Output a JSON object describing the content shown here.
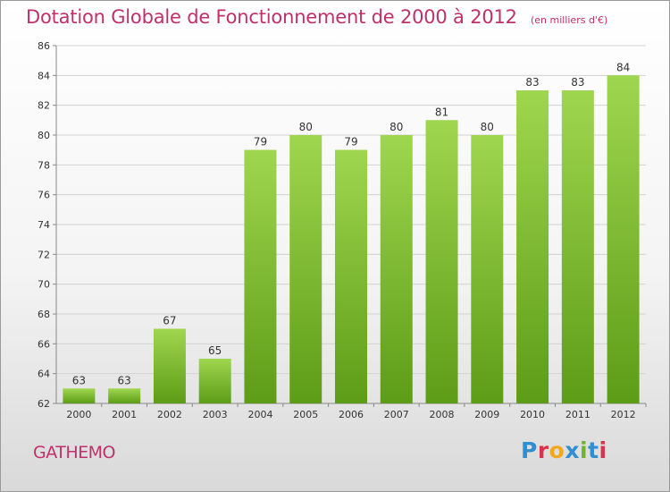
{
  "header": {
    "title": "Dotation Globale de Fonctionnement de 2000 à 2012",
    "subtitle": "(en milliers d'€)"
  },
  "place": "GATHEMO",
  "logo": {
    "text": "Proxiti",
    "colors": [
      "#2f8fd4",
      "#d8334a",
      "#f2a81d",
      "#2f8fd4",
      "#6cb52d",
      "#2f8fd4",
      "#d8334a"
    ]
  },
  "chart_data": {
    "type": "bar",
    "categories": [
      "2000",
      "2001",
      "2002",
      "2003",
      "2004",
      "2005",
      "2006",
      "2007",
      "2008",
      "2009",
      "2010",
      "2011",
      "2012"
    ],
    "values": [
      63,
      63,
      67,
      65,
      79,
      80,
      79,
      80,
      81,
      80,
      83,
      83,
      84
    ],
    "ylim": [
      62,
      86
    ],
    "yticks": [
      62,
      64,
      66,
      68,
      70,
      72,
      74,
      76,
      78,
      80,
      82,
      84,
      86
    ],
    "grid": true,
    "bar_color": "#7cc033",
    "bar_color_light": "#9fd64f",
    "bar_color_dark": "#5d9c17"
  }
}
